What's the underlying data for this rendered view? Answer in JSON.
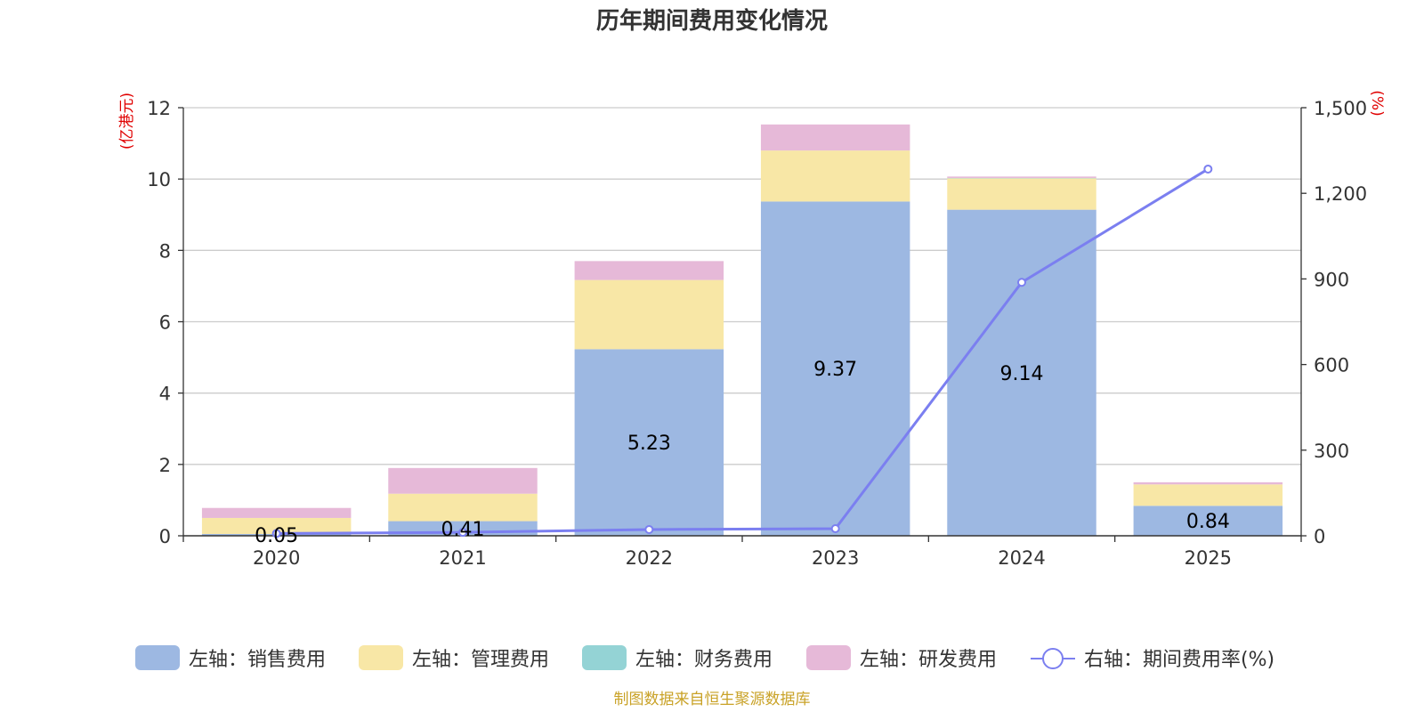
{
  "chart_data": {
    "type": "bar",
    "title": "历年期间费用变化情况",
    "categories": [
      "2020",
      "2021",
      "2022",
      "2023",
      "2024",
      "2025"
    ],
    "left_axis": {
      "unit": "(亿港元)",
      "ylim": [
        0,
        12
      ],
      "ticks": [
        0,
        2,
        4,
        6,
        8,
        10,
        12
      ],
      "tick_labels": [
        "0",
        "2",
        "4",
        "6",
        "8",
        "10",
        "12"
      ]
    },
    "right_axis": {
      "unit": "(%)",
      "ylim": [
        0,
        1500
      ],
      "ticks": [
        0,
        300,
        600,
        900,
        1200,
        1500
      ],
      "tick_labels": [
        "0",
        "300",
        "600",
        "900",
        "1,200",
        "1,500"
      ]
    },
    "series": [
      {
        "name": "左轴：销售费用",
        "axis": "left",
        "kind": "bar",
        "color": "#9db8e2",
        "values": [
          0.05,
          0.41,
          5.23,
          9.37,
          9.14,
          0.84
        ],
        "labels": [
          "0.05",
          "0.41",
          "5.23",
          "9.37",
          "9.14",
          "0.84"
        ]
      },
      {
        "name": "左轴：管理费用",
        "axis": "left",
        "kind": "bar",
        "color": "#f8e7a6",
        "values": [
          0.45,
          0.77,
          1.94,
          1.43,
          0.88,
          0.6
        ]
      },
      {
        "name": "左轴：财务费用",
        "axis": "left",
        "kind": "bar",
        "color": "#94d3d5",
        "values": [
          0,
          0,
          0,
          0,
          0.01,
          0
        ]
      },
      {
        "name": "左轴：研发费用",
        "axis": "left",
        "kind": "bar",
        "color": "#e6b9d8",
        "values": [
          0.28,
          0.72,
          0.53,
          0.73,
          0.04,
          0.06
        ]
      },
      {
        "name": "右轴：期间费用率(%)",
        "axis": "right",
        "kind": "line",
        "color": "#7b7ff0",
        "values": [
          8,
          12,
          22,
          25,
          888,
          1285
        ]
      }
    ],
    "source": "制图数据来自恒生聚源数据库"
  }
}
